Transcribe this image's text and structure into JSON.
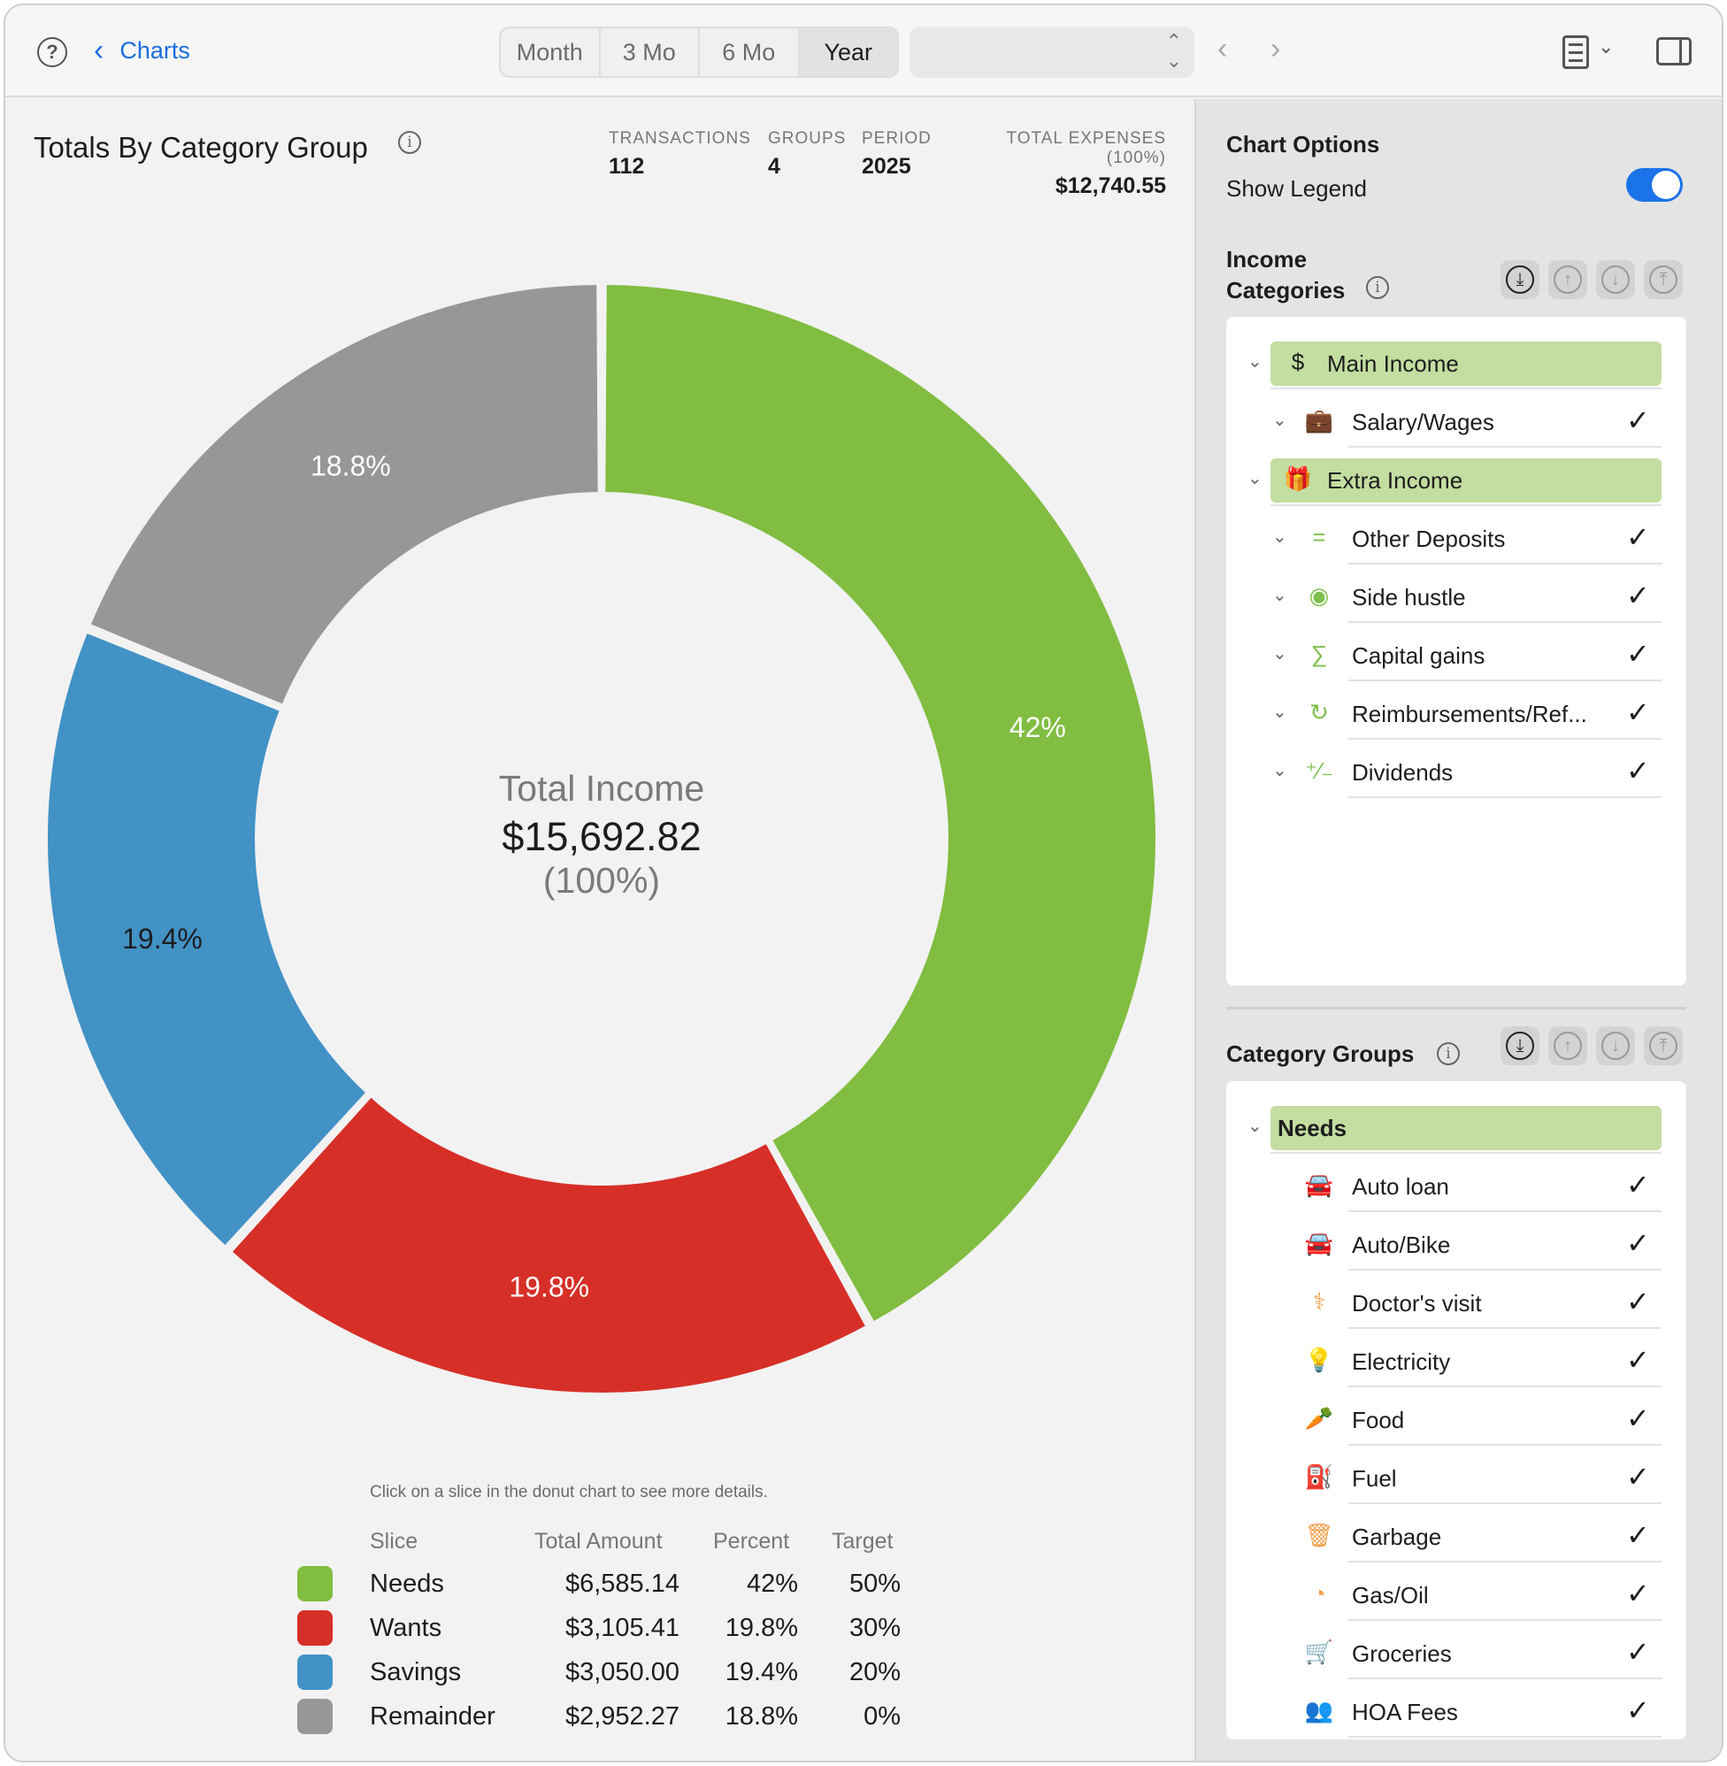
{
  "toolbar": {
    "help": "?",
    "back_label": "Charts",
    "segments": [
      "Month",
      "3 Mo",
      "6 Mo",
      "Year"
    ],
    "active_segment": "Year",
    "period_select_value": ""
  },
  "header": {
    "title": "Totals By Category Group",
    "stats": [
      {
        "label": "TRANSACTIONS",
        "value": "112"
      },
      {
        "label": "GROUPS",
        "value": "4"
      },
      {
        "label": "PERIOD",
        "value": "2025"
      },
      {
        "label": "TOTAL EXPENSES (100%)",
        "value": "$12,740.55"
      }
    ]
  },
  "center": {
    "title": "Total Income",
    "amount": "$15,692.82",
    "percent": "(100%)"
  },
  "chart_data": {
    "type": "pie",
    "categories": [
      "Needs",
      "Wants",
      "Savings",
      "Remainder"
    ],
    "values": [
      6585.14,
      3105.41,
      3050.0,
      2952.27
    ],
    "labels": [
      "42%",
      "19.8%",
      "19.4%",
      "18.8%"
    ],
    "colors": [
      "#81bd41",
      "#d62f28",
      "#4292c6",
      "#979797"
    ]
  },
  "hint": "Click on a slice in the donut chart to see more details.",
  "legend": {
    "headers": {
      "slice": "Slice",
      "total": "Total Amount",
      "percent": "Percent",
      "target": "Target"
    },
    "rows": [
      {
        "slice": "Needs",
        "total": "$6,585.14",
        "percent": "42%",
        "target": "50%",
        "color": "#81bd41"
      },
      {
        "slice": "Wants",
        "total": "$3,105.41",
        "percent": "19.8%",
        "target": "30%",
        "color": "#d62f28"
      },
      {
        "slice": "Savings",
        "total": "$3,050.00",
        "percent": "19.4%",
        "target": "20%",
        "color": "#4292c6"
      },
      {
        "slice": "Remainder",
        "total": "$2,952.27",
        "percent": "18.8%",
        "target": "0%",
        "color": "#979797"
      }
    ]
  },
  "panel": {
    "chart_options_title": "Chart Options",
    "show_legend_label": "Show Legend",
    "show_legend": true,
    "income_title_1": "Income",
    "income_title_2": "Categories",
    "income_items": [
      {
        "label": "Main Income",
        "icon": "$",
        "icon_name": "dollar-icon",
        "group": true
      },
      {
        "label": "Salary/Wages",
        "icon": "💼",
        "icon_name": "briefcase-icon",
        "group": false
      },
      {
        "label": "Extra Income",
        "icon": "🎁",
        "icon_name": "gift-icon",
        "group": true
      },
      {
        "label": "Other Deposits",
        "icon": "=",
        "icon_name": "equals-icon",
        "group": false
      },
      {
        "label": "Side hustle",
        "icon": "◉",
        "icon_name": "lifebuoy-icon",
        "group": false
      },
      {
        "label": "Capital gains",
        "icon": "∑",
        "icon_name": "sigma-icon",
        "group": false
      },
      {
        "label": "Reimbursements/Ref...",
        "icon": "↻",
        "icon_name": "refund-icon",
        "group": false
      },
      {
        "label": "Dividends",
        "icon": "⁺⁄₋",
        "icon_name": "plus-minus-icon",
        "group": false
      }
    ],
    "groups_title": "Category Groups",
    "group_items": [
      {
        "label": "Needs",
        "icon": "",
        "icon_name": "",
        "group": true
      },
      {
        "label": "Auto loan",
        "icon": "🚘",
        "icon_name": "car-icon",
        "group": false
      },
      {
        "label": "Auto/Bike",
        "icon": "🚘",
        "icon_name": "car-icon",
        "group": false
      },
      {
        "label": "Doctor's visit",
        "icon": "⚕",
        "icon_name": "stethoscope-icon",
        "group": false
      },
      {
        "label": "Electricity",
        "icon": "💡",
        "icon_name": "lightbulb-icon",
        "group": false
      },
      {
        "label": "Food",
        "icon": "🥕",
        "icon_name": "carrot-icon",
        "group": false
      },
      {
        "label": "Fuel",
        "icon": "⛽",
        "icon_name": "fuel-pump-icon",
        "group": false
      },
      {
        "label": "Garbage",
        "icon": "🗑",
        "icon_name": "trash-icon",
        "group": false
      },
      {
        "label": "Gas/Oil",
        "icon": "◔",
        "icon_name": "gauge-icon",
        "group": false
      },
      {
        "label": "Groceries",
        "icon": "🛒",
        "icon_name": "cart-icon",
        "group": false
      },
      {
        "label": "HOA Fees",
        "icon": "👥",
        "icon_name": "people-icon",
        "group": false
      }
    ],
    "check": "✓"
  }
}
